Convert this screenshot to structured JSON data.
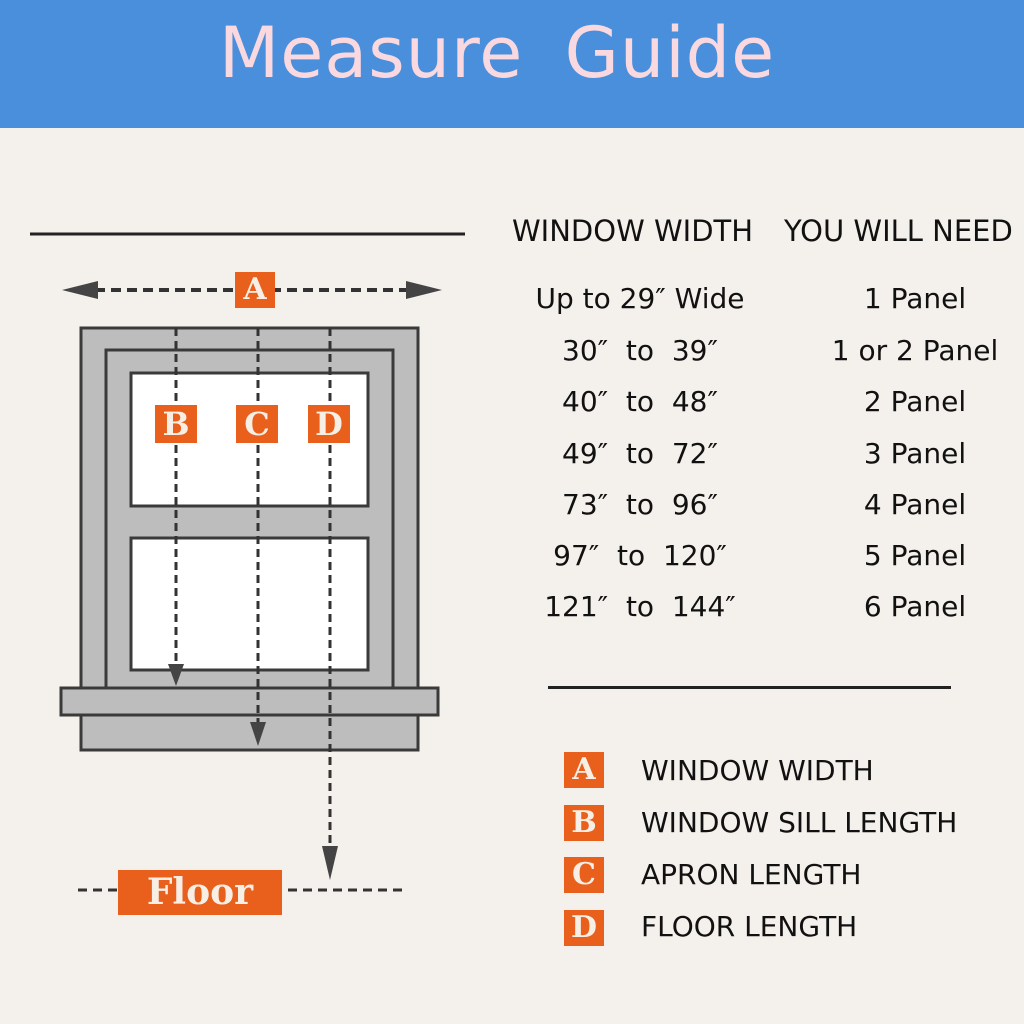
{
  "header": {
    "title": "Measure Guide"
  },
  "colors": {
    "header_bg": "#4a8fdb",
    "title": "#f9d8df",
    "accent": "#e8601c",
    "frame": "#bdbdbd",
    "background": "#f4f0eb"
  },
  "diagram": {
    "labels": {
      "a": "A",
      "b": "B",
      "c": "C",
      "d": "D"
    },
    "floor": "Floor"
  },
  "table": {
    "headers": [
      "WINDOW WIDTH",
      "YOU WILL NEED"
    ],
    "rows": [
      {
        "width": "Up to 29″ Wide",
        "need": "1 Panel"
      },
      {
        "width": "30″  to  39″",
        "need": "1 or 2 Panel"
      },
      {
        "width": "40″  to  48″",
        "need": "2 Panel"
      },
      {
        "width": "49″  to  72″",
        "need": "3 Panel"
      },
      {
        "width": "73″  to  96″",
        "need": "4 Panel"
      },
      {
        "width": "97″  to  120″",
        "need": "5 Panel"
      },
      {
        "width": "121″  to  144″",
        "need": "6 Panel"
      }
    ]
  },
  "legend": [
    {
      "key": "A",
      "text": "WINDOW WIDTH"
    },
    {
      "key": "B",
      "text": "WINDOW SILL LENGTH"
    },
    {
      "key": "C",
      "text": "APRON LENGTH"
    },
    {
      "key": "D",
      "text": "FLOOR LENGTH"
    }
  ]
}
